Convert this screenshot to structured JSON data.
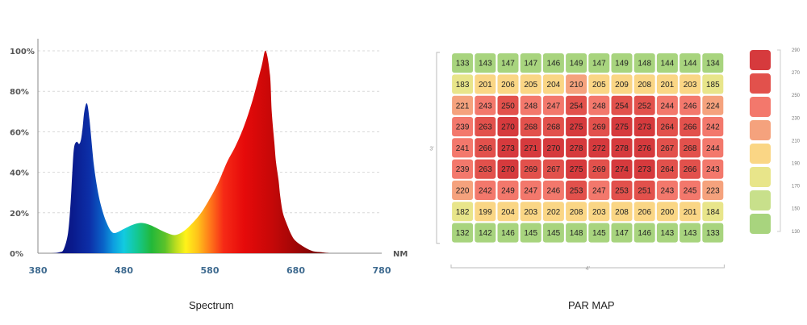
{
  "chart_data": [
    {
      "type": "area",
      "title": "Spectrum",
      "x_unit": "NM",
      "xlim": [
        380,
        780
      ],
      "ylim": [
        0,
        100
      ],
      "x_ticks": [
        380,
        480,
        580,
        680,
        780
      ],
      "y_ticks": [
        "0%",
        "20%",
        "40%",
        "60%",
        "80%",
        "100%"
      ],
      "grid": true,
      "series": [
        {
          "x": [
            380,
            395,
            405,
            410,
            415,
            418,
            420,
            422,
            425,
            428,
            430,
            432,
            434,
            437,
            440,
            445,
            450,
            455,
            460,
            465,
            470,
            480,
            490,
            500,
            510,
            520,
            530,
            540,
            550,
            560,
            570,
            580,
            590,
            600,
            610,
            620,
            630,
            640,
            645,
            650,
            652,
            655,
            657,
            660,
            662,
            665,
            670,
            675,
            680,
            690,
            700,
            710,
            720
          ],
          "values": [
            0,
            0,
            0.5,
            2,
            10,
            25,
            40,
            52,
            55,
            54,
            56,
            62,
            70,
            74,
            66,
            44,
            30,
            21,
            15,
            11,
            10,
            12,
            14,
            15,
            14,
            12,
            10,
            9,
            11,
            15,
            20,
            27,
            35,
            45,
            53,
            63,
            76,
            92,
            100,
            88,
            70,
            55,
            45,
            36,
            28,
            20,
            14,
            9,
            6,
            3,
            1,
            0.5,
            0
          ]
        }
      ]
    },
    {
      "type": "heatmap",
      "title": "PAR MAP",
      "width_label": "4'",
      "height_label": "3'",
      "rows": [
        [
          133,
          143,
          147,
          147,
          146,
          149,
          147,
          149,
          148,
          144,
          144,
          134
        ],
        [
          183,
          201,
          206,
          205,
          204,
          210,
          205,
          209,
          208,
          201,
          203,
          185
        ],
        [
          221,
          243,
          250,
          248,
          247,
          254,
          248,
          254,
          252,
          244,
          246,
          224
        ],
        [
          239,
          263,
          270,
          268,
          268,
          275,
          269,
          275,
          273,
          264,
          266,
          242
        ],
        [
          241,
          266,
          273,
          271,
          270,
          278,
          272,
          278,
          276,
          267,
          268,
          244
        ],
        [
          239,
          263,
          270,
          269,
          267,
          275,
          269,
          274,
          273,
          264,
          266,
          243
        ],
        [
          220,
          242,
          249,
          247,
          246,
          253,
          247,
          253,
          251,
          243,
          245,
          223
        ],
        [
          182,
          199,
          204,
          203,
          202,
          208,
          203,
          208,
          206,
          200,
          201,
          184
        ],
        [
          132,
          142,
          146,
          145,
          145,
          148,
          145,
          147,
          146,
          143,
          143,
          133
        ]
      ],
      "legend": [
        {
          "label": "290",
          "color": "#d63a3d"
        },
        {
          "label": "270",
          "color": "#e2514c"
        },
        {
          "label": "250",
          "color": "#f3786c"
        },
        {
          "label": "230",
          "color": "#f5a27d"
        },
        {
          "label": "210",
          "color": "#fad685"
        },
        {
          "label": "190",
          "color": "#e8e58a"
        },
        {
          "label": "170",
          "color": "#c8e08b"
        },
        {
          "label": "150",
          "color": "#a8d47e"
        },
        {
          "label": "130",
          "color": "#a8d47e"
        }
      ]
    }
  ],
  "captions": {
    "spectrum": "Spectrum",
    "par_map": "PAR MAP"
  }
}
